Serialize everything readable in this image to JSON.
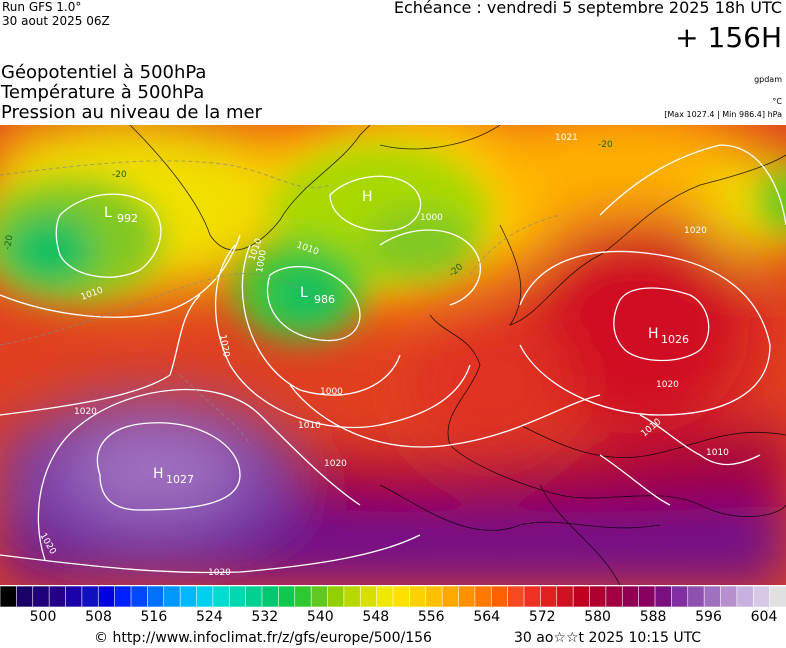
{
  "header": {
    "run": "Run GFS 1.0°",
    "run_date": "30 aout 2025 06Z",
    "validity": "Echéance : vendredi 5 septembre 2025 18h UTC",
    "lead_time": "+ 156H"
  },
  "layers": [
    "Géopotentiel à 500hPa",
    "Température à 500hPa",
    "Pression au niveau de la mer"
  ],
  "units": {
    "geopotential": "gpdam",
    "temperature": "°C",
    "pressure_minmax": "[Max 1027.4 | Min 986.4] hPa"
  },
  "map": {
    "highs": [
      {
        "letter": "H",
        "value": "1027"
      },
      {
        "letter": "H",
        "value": "1026"
      },
      {
        "letter": "H",
        "value": ""
      }
    ],
    "lows": [
      {
        "letter": "L",
        "value": "986"
      },
      {
        "letter": "L",
        "value": "992"
      }
    ],
    "isobar_labels": [
      "1020",
      "1020",
      "1020",
      "1020",
      "1020",
      "1020",
      "1020",
      "1010",
      "1010",
      "1010",
      "1010",
      "1010",
      "1010",
      "1000",
      "1000",
      "1000",
      "1021"
    ],
    "temperature_labels": [
      "-20",
      "-20",
      "-20",
      "-20"
    ]
  },
  "colorbar": {
    "tick_labels": [
      "500",
      "508",
      "516",
      "524",
      "532",
      "540",
      "548",
      "556",
      "564",
      "572",
      "580",
      "588",
      "596",
      "604"
    ],
    "colors": [
      "#000000",
      "#1a0066",
      "#20007a",
      "#240088",
      "#1a00a8",
      "#1010c0",
      "#0000e0",
      "#0020ff",
      "#0048ff",
      "#0070ff",
      "#0098ff",
      "#00b8ff",
      "#00d0f0",
      "#00dcd0",
      "#00d8b0",
      "#00d090",
      "#00c870",
      "#10c850",
      "#30c830",
      "#60c820",
      "#90d000",
      "#b8d800",
      "#d8e000",
      "#f0e800",
      "#ffe000",
      "#ffd000",
      "#ffc000",
      "#ffa800",
      "#ff9000",
      "#ff7800",
      "#ff6000",
      "#f84820",
      "#f03020",
      "#e02020",
      "#d01020",
      "#c00020",
      "#b00030",
      "#a00040",
      "#900050",
      "#880060",
      "#7a1080",
      "#8030a0",
      "#9050b0",
      "#a070c0",
      "#b890d0",
      "#c8b0e0",
      "#d8c8e8",
      "#e0e0e0"
    ]
  },
  "footer": {
    "credit": "© http://www.infoclimat.fr/z/gfs/europe/500/156",
    "timestamp": "30 ao☆☆t 2025 10:15 UTC"
  }
}
